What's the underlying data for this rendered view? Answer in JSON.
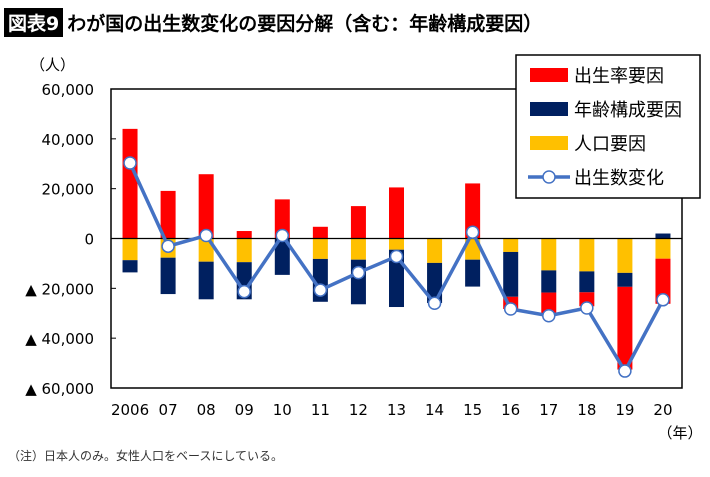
{
  "figure_label": "図表9",
  "title": "わが国の出生数変化の要因分解（含む：年齢構成要因）",
  "note": "（注）日本人のみ。女性人口をベースにしている。",
  "chart_data": {
    "type": "bar",
    "stacked": true,
    "ylabel": "（人）",
    "xlabel": "（年）",
    "ylim": [
      -60000,
      60000
    ],
    "yticks": [
      60000,
      40000,
      20000,
      0,
      -20000,
      -40000,
      -60000
    ],
    "ytick_labels": [
      "60,000",
      "40,000",
      "20,000",
      "0",
      "▲ 20,000",
      "▲ 40,000",
      "▲ 60,000"
    ],
    "categories": [
      "2006",
      "07",
      "08",
      "09",
      "10",
      "11",
      "12",
      "13",
      "14",
      "15",
      "16",
      "17",
      "18",
      "19",
      "20"
    ],
    "series": [
      {
        "name": "出生率要因",
        "type": "bar",
        "color": "#ff0000",
        "values": [
          44000,
          19100,
          25800,
          3000,
          15700,
          4700,
          13000,
          20500,
          0,
          22100,
          -4900,
          -8200,
          -5600,
          -33200,
          -18100
        ]
      },
      {
        "name": "年齢構成要因",
        "type": "bar",
        "color": "#002060",
        "values": [
          -4900,
          -14600,
          -15100,
          -14900,
          -14600,
          -17200,
          -17900,
          -23000,
          -16100,
          -10800,
          -18000,
          -8900,
          -8400,
          -5600,
          2000
        ]
      },
      {
        "name": "人口要因",
        "type": "bar",
        "color": "#ffc000",
        "values": [
          -8700,
          -7700,
          -9300,
          -9500,
          0,
          -8200,
          -8500,
          -4500,
          -9800,
          -8500,
          -5400,
          -12800,
          -13200,
          -13800,
          -8100
        ]
      },
      {
        "name": "出生数変化",
        "type": "line",
        "color": "#4472c4",
        "values": [
          30300,
          -3100,
          1200,
          -21300,
          1200,
          -20700,
          -13700,
          -7200,
          -26000,
          2500,
          -28300,
          -31000,
          -27900,
          -53200,
          -24600
        ]
      }
    ],
    "legend_position": "top-right",
    "grid": false
  }
}
